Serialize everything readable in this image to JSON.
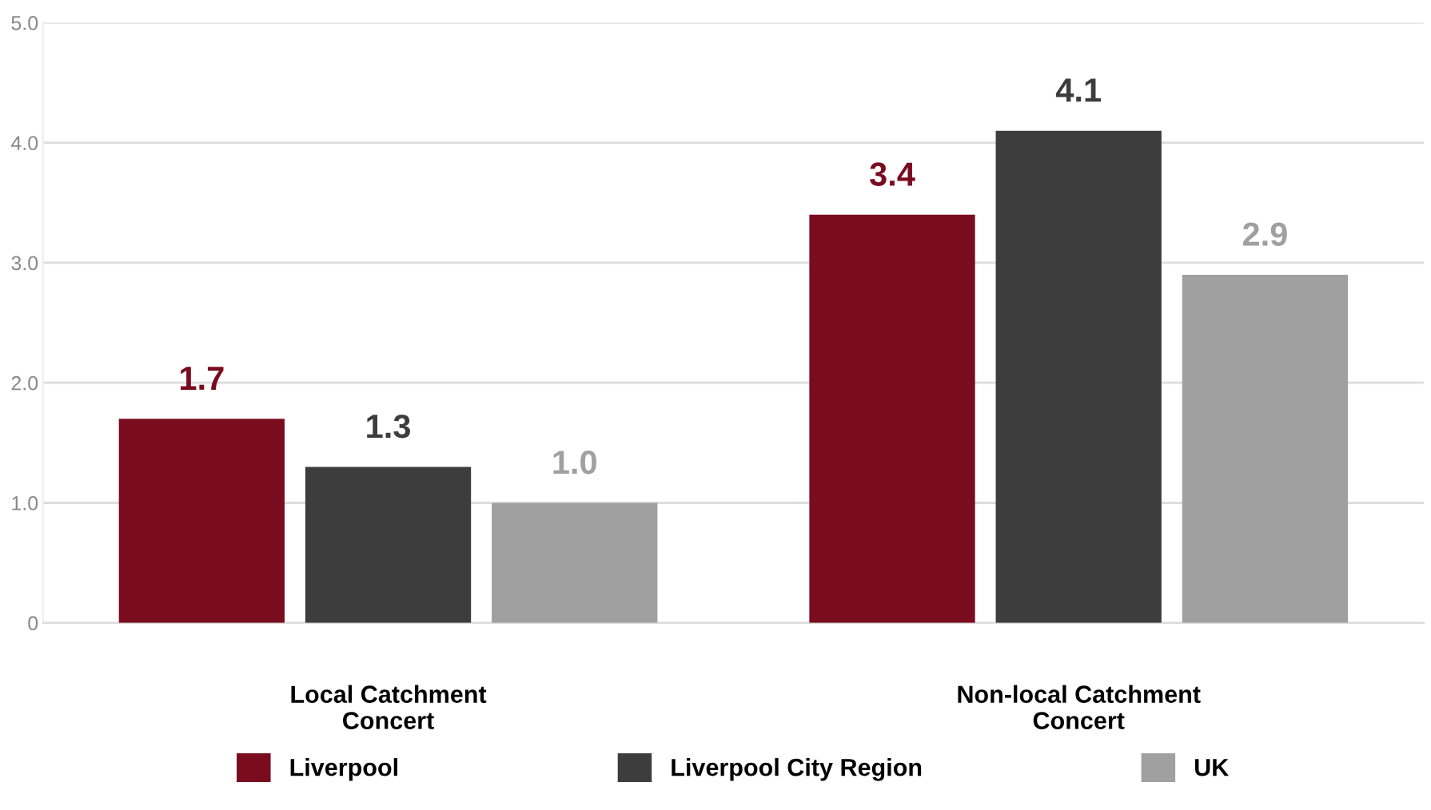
{
  "chart_data": {
    "type": "bar",
    "categories": [
      "Local Catchment\nConcert",
      "Non-local Catchment\nConcert"
    ],
    "series": [
      {
        "name": "Liverpool",
        "color": "#7a0c1f",
        "values": [
          1.7,
          3.4
        ],
        "value_labels": [
          "1.7",
          "3.4"
        ]
      },
      {
        "name": "Liverpool City Region",
        "color": "#3d3d3d",
        "values": [
          1.3,
          4.1
        ],
        "value_labels": [
          "1.3",
          "4.1"
        ]
      },
      {
        "name": "UK",
        "color": "#a0a0a0",
        "values": [
          1.0,
          2.9
        ],
        "value_labels": [
          "1.0",
          "2.9"
        ]
      }
    ],
    "ylim": [
      0,
      5
    ],
    "yticks": [
      0,
      {
        "value": 1,
        "label": "1.0"
      },
      {
        "value": 2,
        "label": "2.0"
      },
      {
        "value": 3,
        "label": "3.0"
      },
      {
        "value": 4,
        "label": "4.0"
      },
      {
        "value": 5,
        "label": "5.0"
      }
    ],
    "grid": "y",
    "legend": "bottom"
  }
}
